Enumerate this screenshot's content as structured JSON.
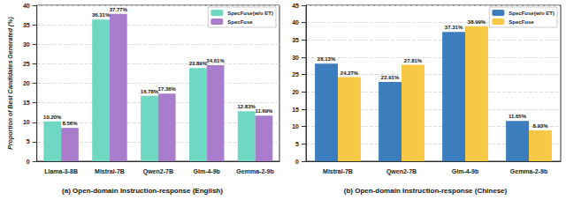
{
  "chart_data": [
    {
      "type": "bar",
      "title": "(a) Open-domain Instruction-response (English)",
      "y_label": "Proportion of Best Candidates Generated (%)",
      "categories": [
        "Llama-3-8B",
        "Mistral-7B",
        "Qwen2-7B",
        "Glm-4-9b",
        "Gemma-2-9b"
      ],
      "series": [
        {
          "name": "SpecFuse(w/o ET)",
          "color": "#6fd8c2",
          "values": [
            10.2,
            36.31,
            16.78,
            23.89,
            12.83
          ],
          "value_labels": [
            "10.20%",
            "36.31%",
            "16.78%",
            "23.89%",
            "12.83%"
          ]
        },
        {
          "name": "SpecFuse",
          "color": "#a97dcb",
          "values": [
            8.56,
            37.77,
            17.36,
            24.61,
            11.69
          ],
          "value_labels": [
            "8.56%",
            "37.77%",
            "17.36%",
            "24.61%",
            "11.69%"
          ]
        }
      ],
      "ylim": [
        0,
        40
      ],
      "yticks": [
        0,
        5,
        10,
        15,
        20,
        25,
        30,
        35,
        40
      ],
      "grid": true,
      "legend": "upper right",
      "data_labels": true
    },
    {
      "type": "bar",
      "title": "(b) Open-domain Instruction-response (Chinese)",
      "categories": [
        "Mistral-7B",
        "Qwen2-7B",
        "Glm-4-9b",
        "Gemma-2-9b"
      ],
      "series": [
        {
          "name": "SpecFuse(w/o ET)",
          "color": "#3c7dbd",
          "values": [
            28.13,
            22.91,
            37.31,
            11.65
          ],
          "value_labels": [
            "28.13%",
            "22.91%",
            "37.31%",
            "11.65%"
          ]
        },
        {
          "name": "SpecFuse",
          "color": "#f7c845",
          "values": [
            24.27,
            27.81,
            38.99,
            8.93
          ],
          "value_labels": [
            "24.27%",
            "27.81%",
            "38.99%",
            "8.93%"
          ]
        }
      ],
      "ylim": [
        0,
        45
      ],
      "yticks": [
        0,
        5,
        10,
        15,
        20,
        25,
        30,
        35,
        40,
        45
      ],
      "grid": true,
      "legend": "upper right",
      "data_labels": true
    }
  ]
}
